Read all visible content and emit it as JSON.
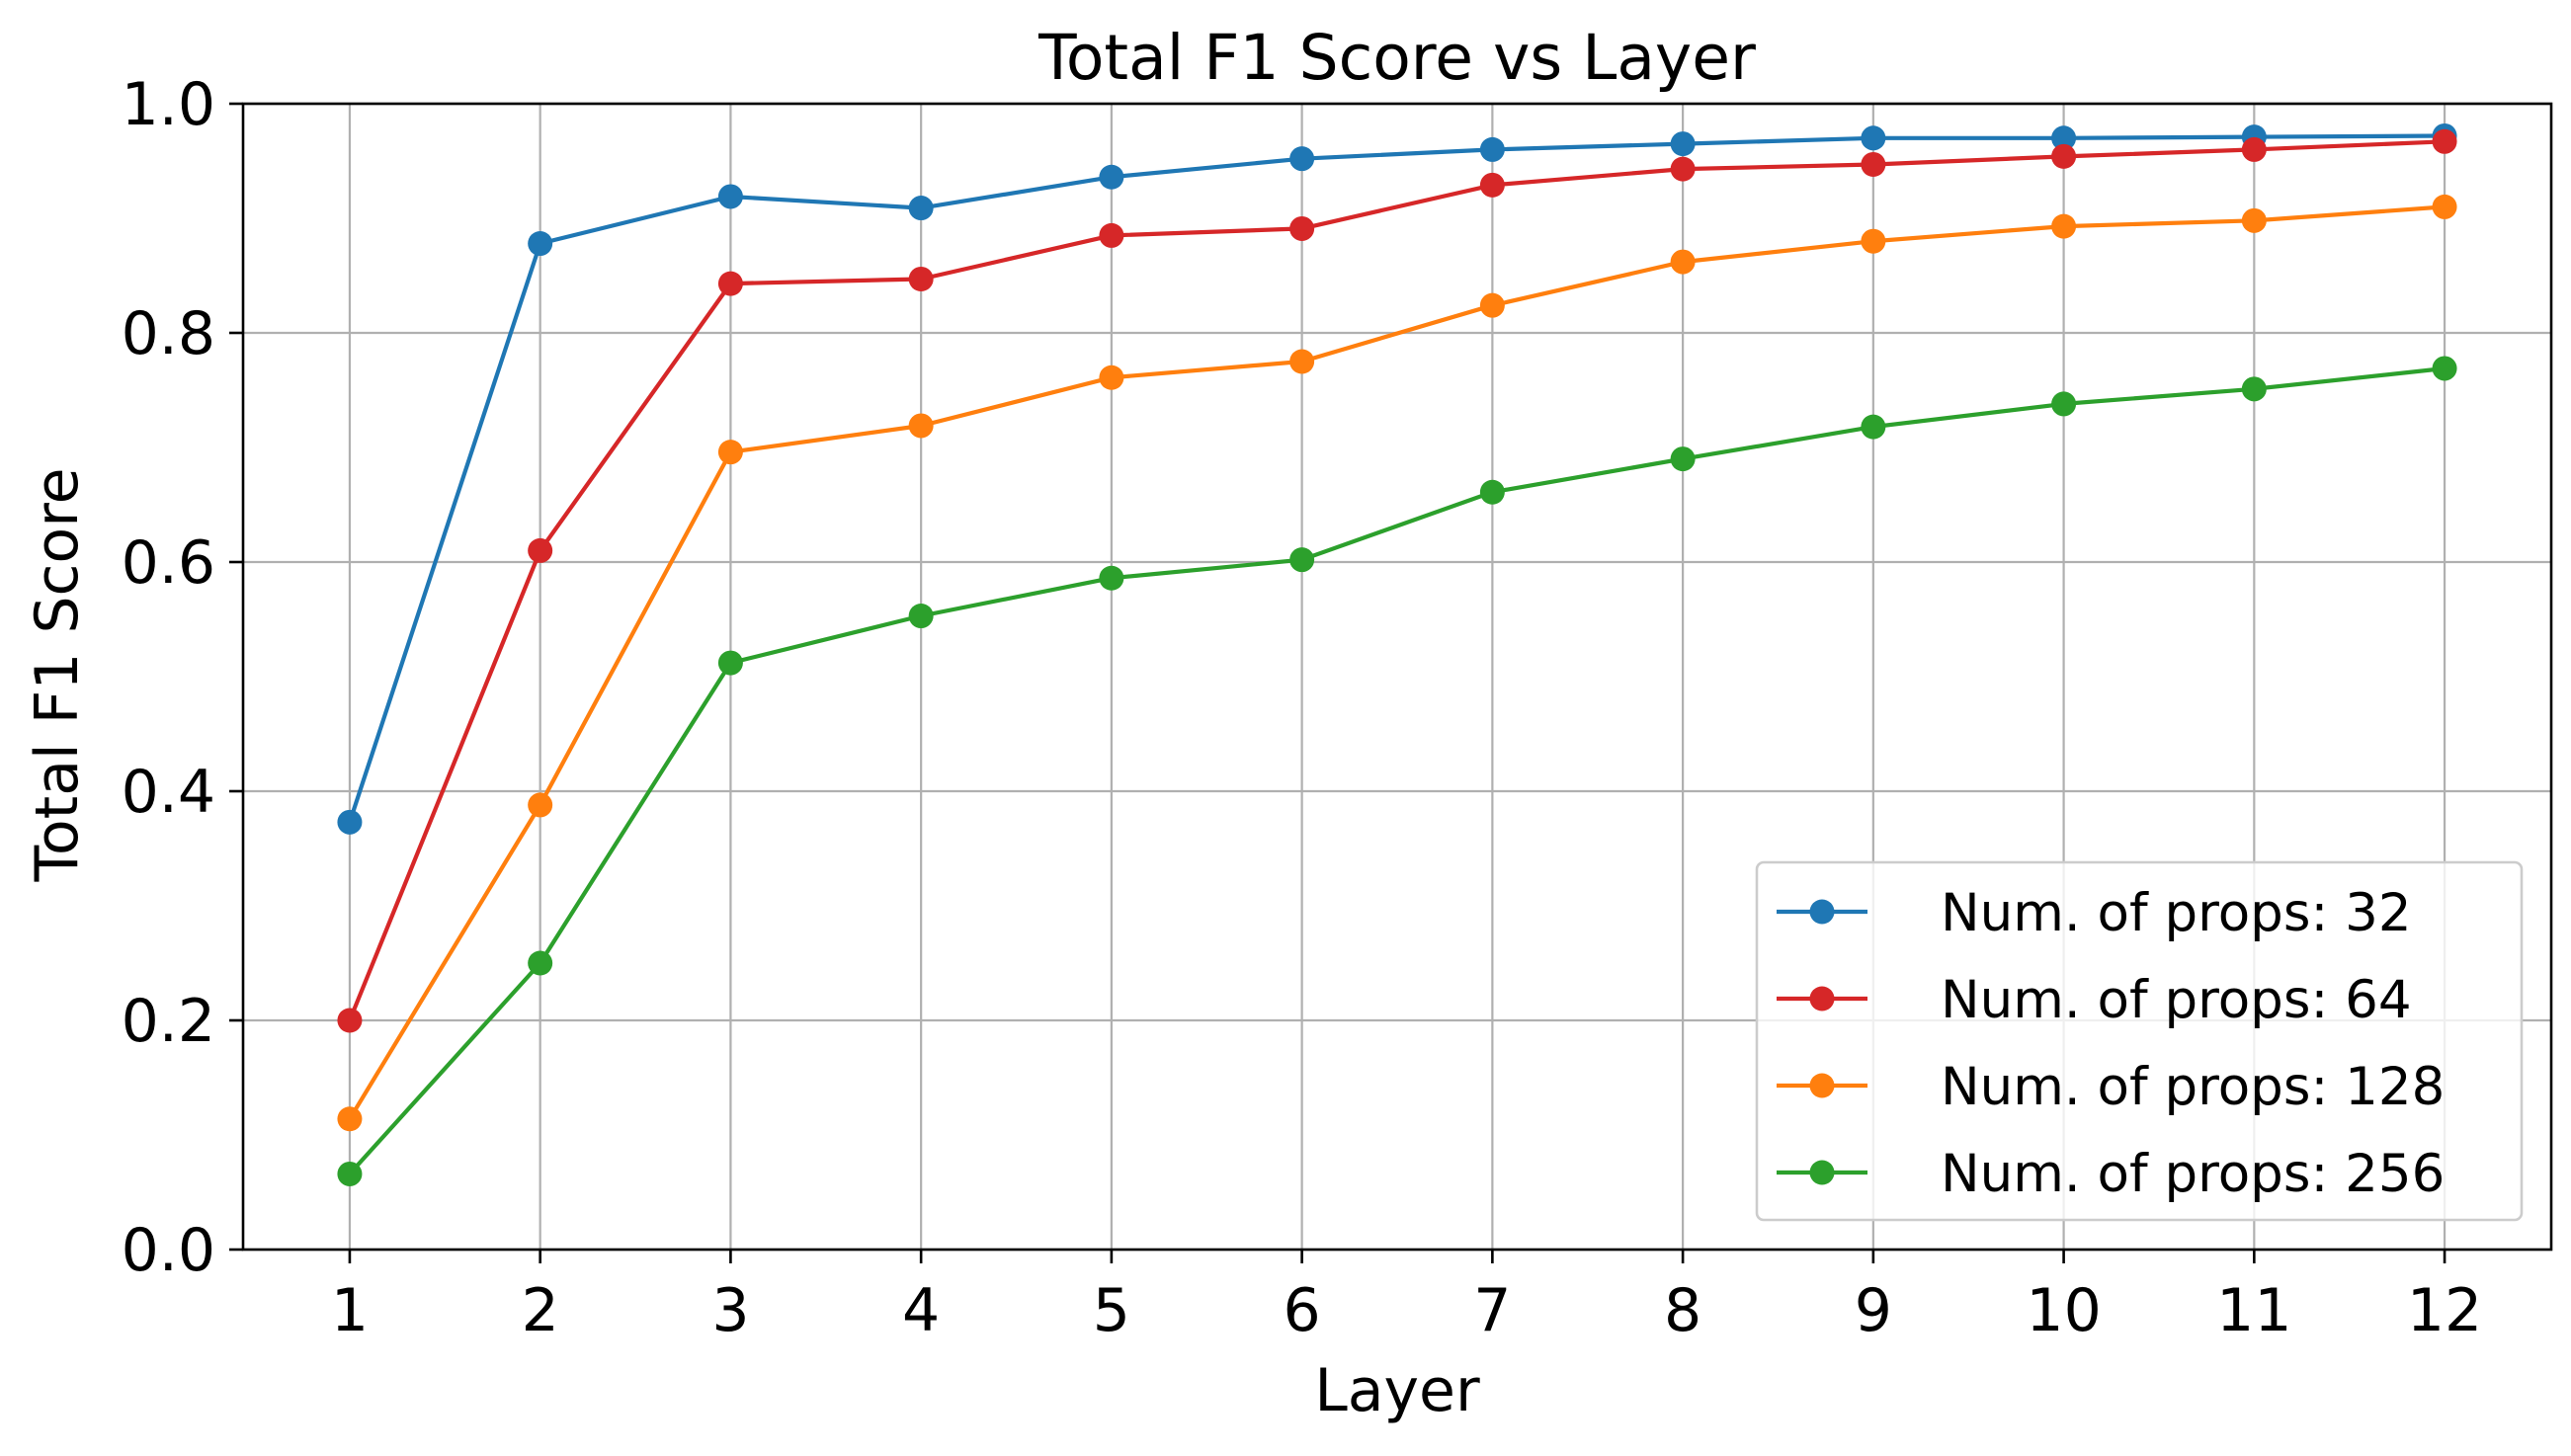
{
  "chart_data": {
    "type": "line",
    "title": "Total F1 Score vs Layer",
    "xlabel": "Layer",
    "ylabel": "Total F1 Score",
    "x": [
      1,
      2,
      3,
      4,
      5,
      6,
      7,
      8,
      9,
      10,
      11,
      12
    ],
    "x_tick_labels": [
      "1",
      "2",
      "3",
      "4",
      "5",
      "6",
      "7",
      "8",
      "9",
      "10",
      "11",
      "12"
    ],
    "xlim": [
      0.44,
      12.56
    ],
    "ylim": [
      0.0,
      1.0
    ],
    "y_ticks": [
      0.0,
      0.2,
      0.4,
      0.6,
      0.8,
      1.0
    ],
    "y_tick_labels": [
      "0.0",
      "0.2",
      "0.4",
      "0.6",
      "0.8",
      "1.0"
    ],
    "grid": true,
    "legend_position": "lower-right",
    "marker": "circle",
    "series": [
      {
        "name": "Num. of props: 32",
        "color": "#1f77b4",
        "values": [
          0.373,
          0.878,
          0.919,
          0.909,
          0.936,
          0.952,
          0.96,
          0.965,
          0.97,
          0.97,
          0.971,
          0.972
        ]
      },
      {
        "name": "Num. of props: 64",
        "color": "#d62728",
        "values": [
          0.2,
          0.61,
          0.843,
          0.847,
          0.885,
          0.891,
          0.929,
          0.943,
          0.947,
          0.954,
          0.96,
          0.967
        ]
      },
      {
        "name": "Num. of props: 128",
        "color": "#ff7f0e",
        "values": [
          0.114,
          0.388,
          0.696,
          0.719,
          0.761,
          0.775,
          0.824,
          0.862,
          0.88,
          0.893,
          0.898,
          0.91
        ]
      },
      {
        "name": "Num. of props: 256",
        "color": "#2ca02c",
        "values": [
          0.066,
          0.25,
          0.512,
          0.553,
          0.586,
          0.602,
          0.661,
          0.69,
          0.718,
          0.738,
          0.751,
          0.769
        ]
      }
    ]
  }
}
